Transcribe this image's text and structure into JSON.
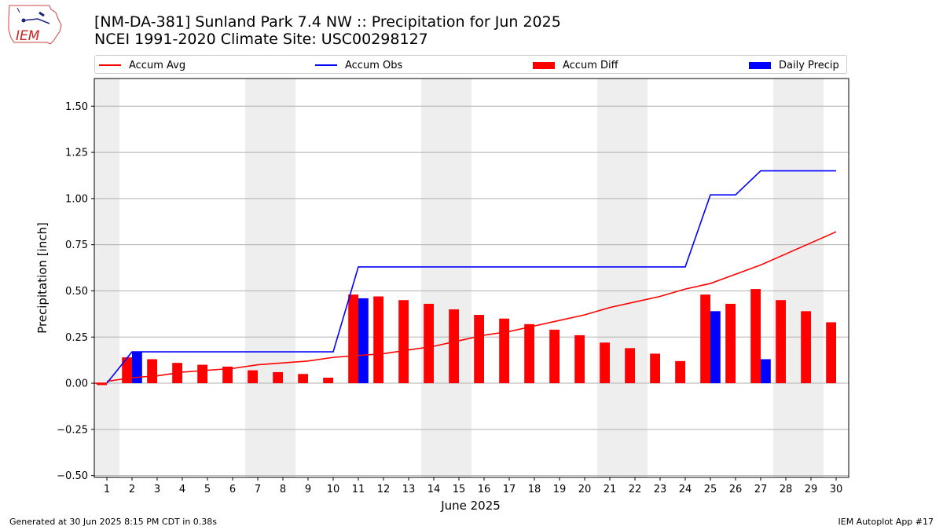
{
  "header": {
    "title_line1": "[NM-DA-381] Sunland Park 7.4 NW :: Precipitation for Jun 2025",
    "title_line2": "NCEI 1991-2020 Climate Site: USC00298127"
  },
  "logo": {
    "text": "IEM"
  },
  "footer": {
    "left": "Generated at 30 Jun 2025 8:15 PM CDT in 0.38s",
    "right": "IEM Autoplot App #17"
  },
  "colors": {
    "accum_avg": "#ff0000",
    "accum_obs": "#0000ff",
    "accum_diff": "#ff0000",
    "daily_precip": "#0000ff",
    "weekend_shade": "#eeeeee",
    "grid": "#b0b0b0"
  },
  "chart_data": {
    "type": "bar",
    "xlabel": "June 2025",
    "ylabel": "Precipitation [inch]",
    "ylim": [
      -0.51,
      1.65
    ],
    "xlim": [
      0.5,
      30.5
    ],
    "yticks": [
      -0.5,
      -0.25,
      0.0,
      0.25,
      0.5,
      0.75,
      1.0,
      1.25,
      1.5
    ],
    "ytick_labels": [
      "−0.50",
      "−0.25",
      "0.00",
      "0.25",
      "0.50",
      "0.75",
      "1.00",
      "1.25",
      "1.50"
    ],
    "x": [
      1,
      2,
      3,
      4,
      5,
      6,
      7,
      8,
      9,
      10,
      11,
      12,
      13,
      14,
      15,
      16,
      17,
      18,
      19,
      20,
      21,
      22,
      23,
      24,
      25,
      26,
      27,
      28,
      29,
      30
    ],
    "grid": "horizontal",
    "legend_placement": "top, spanning width",
    "weekend_shaded_days": [
      1,
      7,
      8,
      14,
      15,
      21,
      22,
      28,
      29
    ],
    "series": [
      {
        "name": "Accum Avg",
        "kind": "line",
        "values": [
          0.01,
          0.03,
          0.04,
          0.06,
          0.07,
          0.08,
          0.1,
          0.11,
          0.12,
          0.14,
          0.15,
          0.16,
          0.18,
          0.2,
          0.23,
          0.26,
          0.28,
          0.31,
          0.34,
          0.37,
          0.41,
          0.44,
          0.47,
          0.51,
          0.54,
          0.59,
          0.64,
          0.7,
          0.76,
          0.82
        ]
      },
      {
        "name": "Accum Obs",
        "kind": "line",
        "values": [
          0.0,
          0.17,
          0.17,
          0.17,
          0.17,
          0.17,
          0.17,
          0.17,
          0.17,
          0.17,
          0.63,
          0.63,
          0.63,
          0.63,
          0.63,
          0.63,
          0.63,
          0.63,
          0.63,
          0.63,
          0.63,
          0.63,
          0.63,
          0.63,
          1.02,
          1.02,
          1.15,
          1.15,
          1.15,
          1.15
        ]
      },
      {
        "name": "Accum Diff",
        "kind": "bar",
        "values": [
          -0.01,
          0.14,
          0.13,
          0.11,
          0.1,
          0.09,
          0.07,
          0.06,
          0.05,
          0.03,
          0.48,
          0.47,
          0.45,
          0.43,
          0.4,
          0.37,
          0.35,
          0.32,
          0.29,
          0.26,
          0.22,
          0.19,
          0.16,
          0.12,
          0.48,
          0.43,
          0.51,
          0.45,
          0.39,
          0.33
        ]
      },
      {
        "name": "Daily Precip",
        "kind": "bar",
        "values": [
          0,
          0.17,
          0,
          0,
          0,
          0,
          0,
          0,
          0,
          0,
          0.46,
          0,
          0,
          0,
          0,
          0,
          0,
          0,
          0,
          0,
          0,
          0,
          0,
          0,
          0.39,
          0,
          0.13,
          0,
          0,
          0
        ]
      }
    ]
  }
}
